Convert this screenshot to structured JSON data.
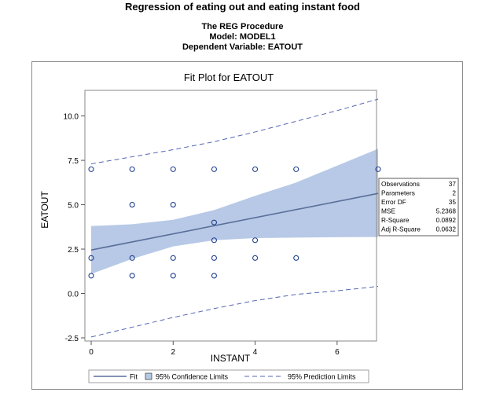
{
  "header": {
    "title": "Regression of eating out and eating instant food",
    "procedure": "The REG Procedure",
    "model": "Model: MODEL1",
    "dependent": "Dependent Variable: EATOUT"
  },
  "colors": {
    "fit_line": "#5a6f9a",
    "confidence_band": "#b7c9e6",
    "prediction_line": "#5566b3",
    "points": "#1f3f8f",
    "frame": "#8a8a8a"
  },
  "chart_data": {
    "type": "scatter",
    "title": "Fit Plot for EATOUT",
    "xlabel": "INSTANT",
    "ylabel": "EATOUT",
    "xlim": [
      0,
      7
    ],
    "ylim": [
      -2.5,
      11
    ],
    "x_ticks": [
      0,
      2,
      4,
      6
    ],
    "x_tick_labels": [
      "0",
      "2",
      "4",
      "6"
    ],
    "y_ticks": [
      -2.5,
      0.0,
      2.5,
      5.0,
      7.5,
      10.0
    ],
    "y_tick_labels": [
      "-2.5",
      "0.0",
      "2.5",
      "5.0",
      "7.5",
      "10.0"
    ],
    "grid": false,
    "points": [
      {
        "x": 0,
        "y": 1
      },
      {
        "x": 0,
        "y": 2
      },
      {
        "x": 0,
        "y": 7
      },
      {
        "x": 1,
        "y": 1
      },
      {
        "x": 1,
        "y": 2
      },
      {
        "x": 1,
        "y": 5
      },
      {
        "x": 1,
        "y": 7
      },
      {
        "x": 2,
        "y": 1
      },
      {
        "x": 2,
        "y": 2
      },
      {
        "x": 2,
        "y": 5
      },
      {
        "x": 2,
        "y": 7
      },
      {
        "x": 3,
        "y": 1
      },
      {
        "x": 3,
        "y": 2
      },
      {
        "x": 3,
        "y": 3
      },
      {
        "x": 3,
        "y": 4
      },
      {
        "x": 3,
        "y": 7
      },
      {
        "x": 4,
        "y": 2
      },
      {
        "x": 4,
        "y": 3
      },
      {
        "x": 4,
        "y": 7
      },
      {
        "x": 5,
        "y": 2
      },
      {
        "x": 5,
        "y": 7
      },
      {
        "x": 7,
        "y": 7
      }
    ],
    "fit_line": {
      "intercept": 2.45,
      "slope": 0.455
    },
    "confidence_band": {
      "x": [
        0,
        1,
        2,
        3,
        4,
        5,
        6,
        7
      ],
      "lower": [
        1.1,
        1.95,
        2.65,
        3.0,
        3.12,
        3.15,
        3.17,
        3.18
      ],
      "upper": [
        3.8,
        3.9,
        4.15,
        4.7,
        5.5,
        6.25,
        7.2,
        8.15
      ]
    },
    "prediction_limits": {
      "x": [
        0,
        1,
        2,
        3,
        4,
        5,
        6,
        7
      ],
      "lower": [
        -2.45,
        -1.9,
        -1.35,
        -0.85,
        -0.4,
        -0.05,
        0.15,
        0.4
      ],
      "upper": [
        7.3,
        7.7,
        8.1,
        8.55,
        9.1,
        9.7,
        10.3,
        10.95
      ]
    },
    "legend": {
      "position": "bottom",
      "entries": [
        "Fit",
        "95% Confidence Limits",
        "95% Prediction Limits"
      ]
    },
    "stats_table": {
      "position": "right",
      "rows": [
        {
          "label": "Observations",
          "value": "37"
        },
        {
          "label": "Parameters",
          "value": "2"
        },
        {
          "label": "Error DF",
          "value": "35"
        },
        {
          "label": "MSE",
          "value": "5.2368"
        },
        {
          "label": "R-Square",
          "value": "0.0892"
        },
        {
          "label": "Adj R-Square",
          "value": "0.0632"
        }
      ]
    }
  }
}
